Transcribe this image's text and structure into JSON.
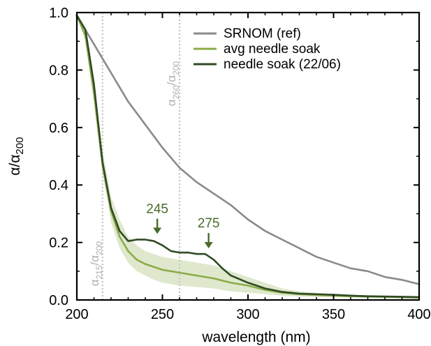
{
  "chart_data": {
    "type": "line",
    "xlabel": "wavelength (nm)",
    "ylabel": {
      "base": "α/α",
      "sub": "200"
    },
    "xlim": [
      200,
      400
    ],
    "ylim": [
      0,
      1.0
    ],
    "xticks": [
      200,
      250,
      300,
      350,
      400
    ],
    "yticks": [
      0.0,
      0.2,
      0.4,
      0.6,
      0.8,
      1.0
    ],
    "xtick_labels": [
      "200",
      "250",
      "300",
      "350",
      "400"
    ],
    "ytick_labels": [
      "0.0",
      "0.2",
      "0.4",
      "0.6",
      "0.8",
      "1.0"
    ],
    "grid": false,
    "legend_position": "top-right",
    "series": [
      {
        "name": "SRNOM (ref)",
        "color": "#8a8a8a",
        "x": [
          200,
          205,
          210,
          215,
          220,
          225,
          230,
          235,
          240,
          250,
          260,
          270,
          280,
          290,
          300,
          310,
          320,
          330,
          340,
          350,
          360,
          370,
          380,
          390,
          400
        ],
        "y": [
          0.99,
          0.94,
          0.89,
          0.84,
          0.79,
          0.74,
          0.69,
          0.65,
          0.61,
          0.53,
          0.46,
          0.41,
          0.37,
          0.33,
          0.28,
          0.24,
          0.21,
          0.18,
          0.15,
          0.13,
          0.11,
          0.1,
          0.08,
          0.07,
          0.055
        ]
      },
      {
        "name": "avg needle soak",
        "color": "#8bab4a",
        "x": [
          200,
          205,
          210,
          215,
          220,
          225,
          230,
          235,
          240,
          245,
          250,
          260,
          270,
          280,
          290,
          300,
          310,
          320,
          330,
          340,
          350,
          360,
          370,
          380,
          390,
          400
        ],
        "y": [
          0.99,
          0.92,
          0.72,
          0.47,
          0.31,
          0.22,
          0.17,
          0.14,
          0.125,
          0.115,
          0.105,
          0.095,
          0.085,
          0.075,
          0.06,
          0.05,
          0.035,
          0.025,
          0.02,
          0.017,
          0.015,
          0.013,
          0.012,
          0.011,
          0.01,
          0.008
        ],
        "band_lower": [
          0.99,
          0.9,
          0.69,
          0.44,
          0.27,
          0.18,
          0.13,
          0.1,
          0.085,
          0.07,
          0.06,
          0.05,
          0.045,
          0.04,
          0.03,
          0.025,
          0.02,
          0.015,
          0.012,
          0.01,
          0.01,
          0.008,
          0.007,
          0.006,
          0.005,
          0.004
        ],
        "band_upper": [
          0.99,
          0.94,
          0.76,
          0.52,
          0.36,
          0.28,
          0.22,
          0.19,
          0.17,
          0.16,
          0.15,
          0.14,
          0.13,
          0.12,
          0.1,
          0.08,
          0.06,
          0.04,
          0.03,
          0.025,
          0.02,
          0.018,
          0.016,
          0.014,
          0.012,
          0.01
        ]
      },
      {
        "name": "needle soak (22/06)",
        "color": "#2f4a24",
        "x": [
          200,
          205,
          210,
          215,
          220,
          225,
          230,
          235,
          240,
          245,
          250,
          255,
          260,
          265,
          270,
          275,
          280,
          285,
          290,
          300,
          310,
          320,
          330,
          340,
          350,
          360,
          370,
          380,
          390,
          400
        ],
        "y": [
          0.99,
          0.94,
          0.75,
          0.48,
          0.32,
          0.24,
          0.205,
          0.21,
          0.21,
          0.205,
          0.19,
          0.17,
          0.165,
          0.165,
          0.16,
          0.16,
          0.14,
          0.11,
          0.085,
          0.06,
          0.04,
          0.028,
          0.022,
          0.02,
          0.018,
          0.015,
          0.013,
          0.012,
          0.011,
          0.01
        ]
      }
    ],
    "vlines": [
      {
        "x": 215,
        "label_base": "α",
        "label_sub1": "215",
        "label_sep": "/α",
        "label_sub2": "200"
      },
      {
        "x": 260,
        "label_base": "α",
        "label_sub1": "260",
        "label_sep": "/α",
        "label_sub2": "200"
      }
    ],
    "annotations": [
      {
        "text": "245",
        "x": 247,
        "y": 0.215,
        "color": "#4a6b2a"
      },
      {
        "text": "275",
        "x": 277,
        "y": 0.165,
        "color": "#4a6b2a"
      }
    ]
  }
}
